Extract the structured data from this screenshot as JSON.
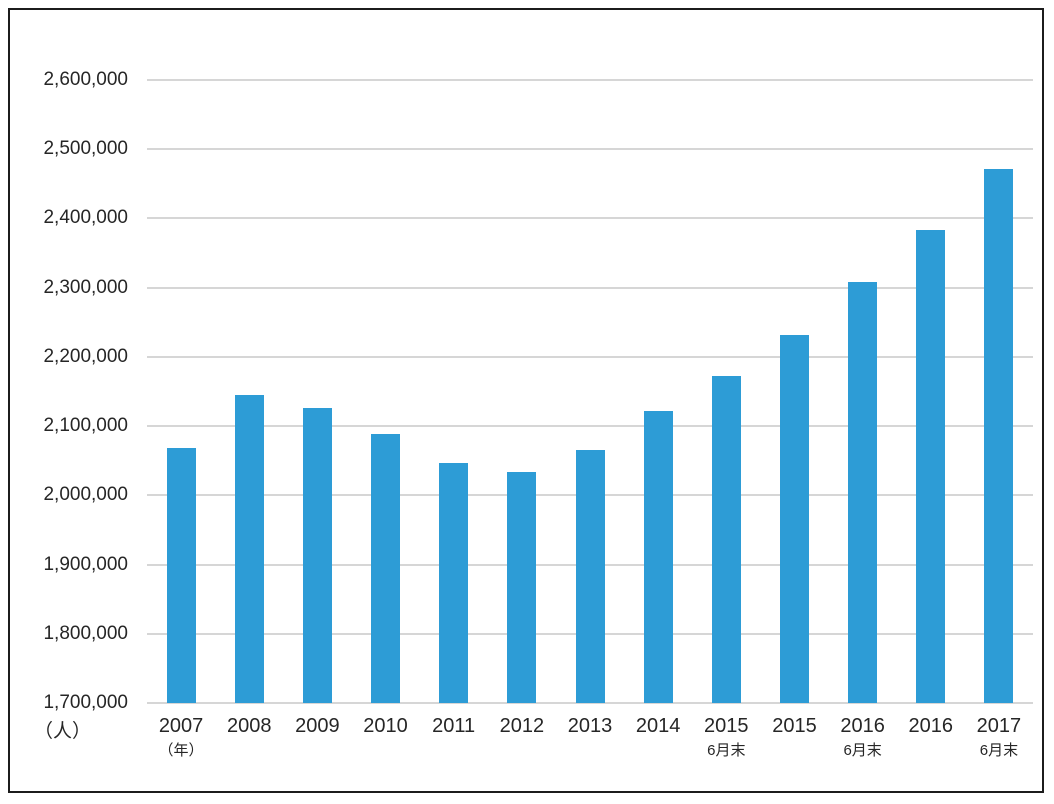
{
  "chart_data": {
    "type": "bar",
    "title": "",
    "categories": [
      {
        "label": "2007",
        "sublabel": "（年）"
      },
      {
        "label": "2008",
        "sublabel": ""
      },
      {
        "label": "2009",
        "sublabel": ""
      },
      {
        "label": "2010",
        "sublabel": ""
      },
      {
        "label": "2011",
        "sublabel": ""
      },
      {
        "label": "2012",
        "sublabel": ""
      },
      {
        "label": "2013",
        "sublabel": ""
      },
      {
        "label": "2014",
        "sublabel": ""
      },
      {
        "label": "2015",
        "sublabel": "6月末"
      },
      {
        "label": "2015",
        "sublabel": ""
      },
      {
        "label": "2016",
        "sublabel": "6月末"
      },
      {
        "label": "2016",
        "sublabel": ""
      },
      {
        "label": "2017",
        "sublabel": "6月末"
      }
    ],
    "values": [
      2069000,
      2145000,
      2126000,
      2088000,
      2047000,
      2034000,
      2066000,
      2122000,
      2172000,
      2232000,
      2308000,
      2383000,
      2471000
    ],
    "unit_label": "（人）",
    "xlabel": "",
    "ylabel": "",
    "ylim": [
      1700000,
      2600000
    ],
    "ytick_step": 100000,
    "yticks": [
      "2,600,000",
      "2,500,000",
      "2,400,000",
      "2,300,000",
      "2,200,000",
      "2,100,000",
      "2,000,000",
      "1,900,000",
      "1,800,000",
      "1,700,000"
    ],
    "grid": true,
    "legend": "none",
    "bar_color": "#2d9cd6",
    "gridline_color": "#d6d6d6",
    "text_color": "#262626",
    "frame_color": "#1c1c1c"
  }
}
